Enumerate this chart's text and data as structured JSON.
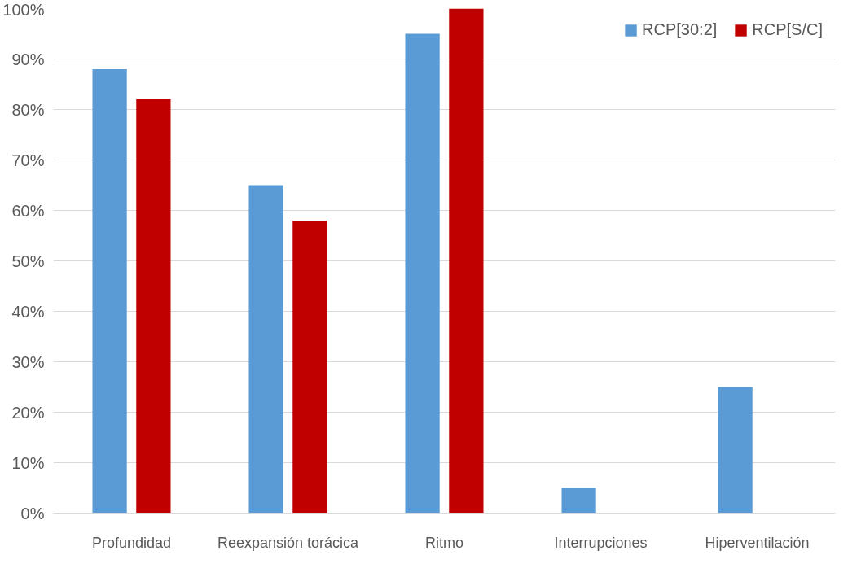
{
  "chart_data": {
    "type": "bar",
    "categories": [
      "Profundidad",
      "Reexpansión torácica",
      "Ritmo",
      "Interrupciones",
      "Hiperventilación"
    ],
    "series": [
      {
        "name": "RCP[30:2]",
        "color": "#5b9bd5",
        "values": [
          88,
          65,
          95,
          5,
          25
        ]
      },
      {
        "name": "RCP[S/C]",
        "color": "#c00000",
        "values": [
          82,
          58,
          100,
          0,
          0
        ]
      }
    ],
    "ylim": [
      0,
      100
    ],
    "yticks": [
      {
        "value": 0,
        "label": "0%"
      },
      {
        "value": 10,
        "label": "10%"
      },
      {
        "value": 20,
        "label": "20%"
      },
      {
        "value": 30,
        "label": "30%"
      },
      {
        "value": 40,
        "label": "40%"
      },
      {
        "value": 50,
        "label": "50%"
      },
      {
        "value": 60,
        "label": "60%"
      },
      {
        "value": 70,
        "label": "70%"
      },
      {
        "value": 80,
        "label": "80%"
      },
      {
        "value": 90,
        "label": "90%"
      },
      {
        "value": 100,
        "label": "100%"
      }
    ],
    "grid": "y",
    "legend": "top right"
  }
}
